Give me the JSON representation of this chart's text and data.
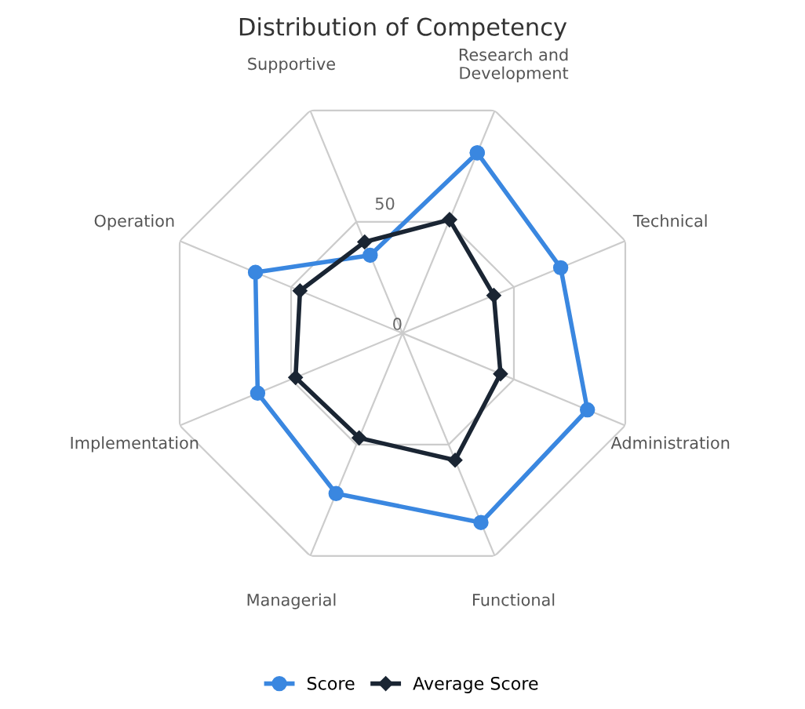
{
  "chart_data": {
    "type": "radar",
    "title": "Distribution of Competency",
    "categories": [
      "Research and\nDevelopment",
      "Technical",
      "Administration",
      "Functional",
      "Managerial",
      "Implementation",
      "Operation",
      "Supportive"
    ],
    "series": [
      {
        "name": "Score",
        "color": "#3a87e0",
        "marker": "circle",
        "values": [
          81,
          71,
          83,
          85,
          72,
          65,
          66,
          35
        ]
      },
      {
        "name": "Average Score",
        "color": "#1a2533",
        "marker": "diamond",
        "values": [
          51,
          41,
          44,
          57,
          47,
          48,
          46,
          41
        ]
      }
    ],
    "ylim": [
      0,
      100
    ],
    "yticks": [
      0,
      50
    ],
    "grid": true,
    "legend": "bottom"
  }
}
